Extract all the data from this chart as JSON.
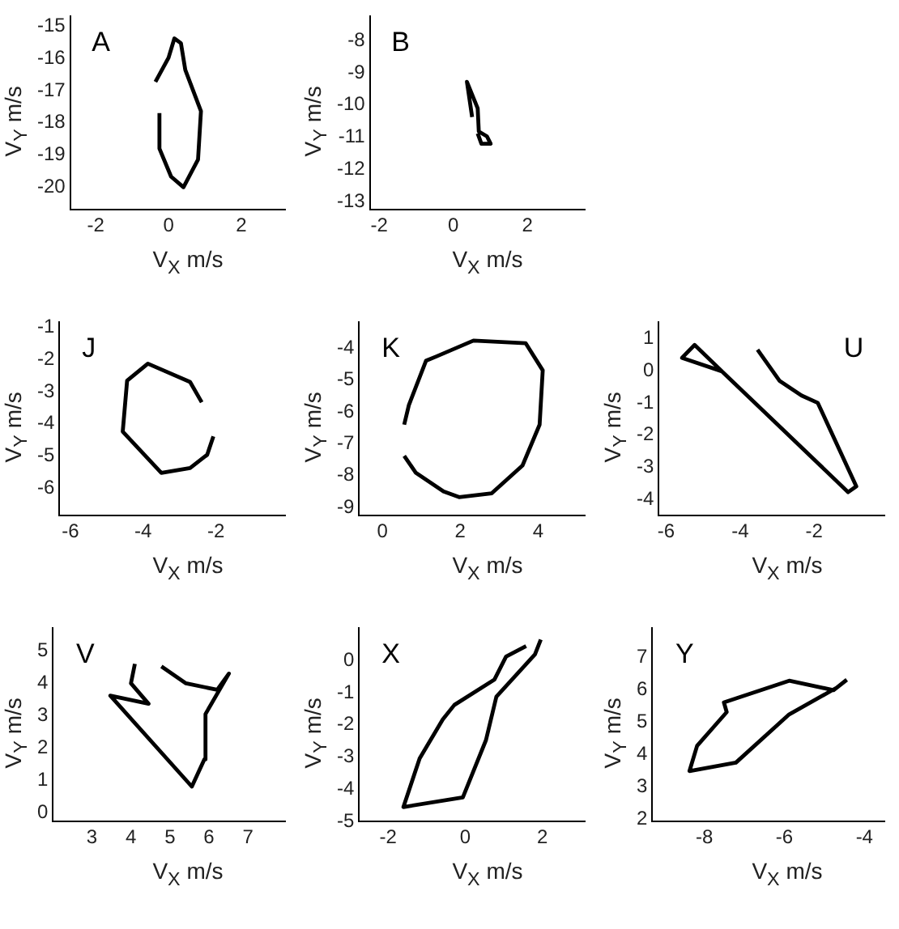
{
  "chart_data": [
    {
      "type": "line",
      "annotations": [
        "A"
      ],
      "xlabel": "V$_{X}$ m/s",
      "ylabel": "V$_{Y}$ m/s",
      "xlim": [
        -2.7,
        3.2
      ],
      "ylim": [
        -20.7,
        -14.7
      ],
      "xticks": [
        -2,
        0,
        2
      ],
      "yticks": [
        -20,
        -19,
        -18,
        -17,
        -16,
        -15
      ],
      "series": [
        {
          "color": "#000000",
          "x": [
            -0.36,
            0.0,
            0.16,
            0.34,
            0.46,
            0.89,
            0.81,
            0.41,
            0.07,
            -0.25,
            -0.25
          ],
          "values": [
            -16.73,
            -15.98,
            -15.38,
            -15.53,
            -16.36,
            -17.64,
            -19.14,
            -20.0,
            -19.67,
            -18.8,
            -17.7
          ]
        }
      ]
    },
    {
      "type": "line",
      "annotations": [
        "B"
      ],
      "xlabel": "V$_{X}$ m/s",
      "ylabel": "V$_{Y}$ m/s",
      "xlim": [
        -2.25,
        3.55
      ],
      "ylim": [
        -13.25,
        -7.25
      ],
      "xticks": [
        -2,
        0,
        2
      ],
      "yticks": [
        -13,
        -12,
        -11,
        -10,
        -9,
        -8
      ],
      "series": [
        {
          "color": "#000000",
          "x": [
            0.51,
            0.37,
            0.66,
            0.69,
            0.91,
            1.01,
            0.76,
            0.66
          ],
          "values": [
            -10.37,
            -9.28,
            -10.1,
            -10.82,
            -10.97,
            -11.2,
            -11.2,
            -10.88
          ]
        }
      ]
    },
    {
      "type": "line",
      "annotations": [
        "J"
      ],
      "xlabel": "V$_{X}$ m/s",
      "ylabel": "V$_{Y}$ m/s",
      "xlim": [
        -6.3,
        -0.1
      ],
      "ylim": [
        -6.85,
        -0.85
      ],
      "xticks": [
        -6,
        -4,
        -2
      ],
      "yticks": [
        -6,
        -5,
        -4,
        -3,
        -2,
        -1
      ],
      "series": [
        {
          "color": "#000000",
          "x": [
            -2.39,
            -2.71,
            -3.87,
            -4.44,
            -4.56,
            -3.5,
            -2.71,
            -2.24,
            -2.07
          ],
          "values": [
            -3.33,
            -2.7,
            -2.13,
            -2.66,
            -4.24,
            -5.52,
            -5.37,
            -4.96,
            -4.39
          ]
        }
      ]
    },
    {
      "type": "line",
      "annotations": [
        "K"
      ],
      "xlabel": "V$_{X}$ m/s",
      "ylabel": "V$_{Y}$ m/s",
      "xlim": [
        -0.6,
        5.2
      ],
      "ylim": [
        -9.25,
        -3.2
      ],
      "xticks": [
        0,
        2,
        4
      ],
      "yticks": [
        -9,
        -8,
        -7,
        -6,
        -5,
        -4
      ],
      "series": [
        {
          "color": "#000000",
          "x": [
            0.56,
            0.86,
            1.57,
            1.97,
            2.81,
            3.6,
            4.04,
            4.12,
            3.68,
            2.34,
            1.38,
            1.12,
            0.68,
            0.56
          ],
          "values": [
            -7.38,
            -7.91,
            -8.49,
            -8.67,
            -8.55,
            -7.68,
            -6.4,
            -4.7,
            -3.85,
            -3.77,
            -4.27,
            -4.4,
            -5.79,
            -6.4
          ]
        }
      ]
    },
    {
      "type": "line",
      "annotations": [
        "U"
      ],
      "xlabel": "V$_{X}$ m/s",
      "ylabel": "V$_{Y}$ m/s",
      "xlim": [
        -6.2,
        -0.1
      ],
      "ylim": [
        -4.5,
        1.5
      ],
      "xticks": [
        -6,
        -4,
        -2
      ],
      "yticks": [
        -4,
        -3,
        -2,
        -1,
        0,
        1
      ],
      "series": [
        {
          "color": "#000000",
          "x": [
            -3.53,
            -2.93,
            -2.34,
            -1.9,
            -0.86,
            -1.08,
            -4.49,
            -5.57,
            -5.23,
            -4.49
          ],
          "values": [
            0.65,
            -0.32,
            -0.77,
            -1.0,
            -3.59,
            -3.77,
            -0.02,
            0.4,
            0.8,
            -0.02
          ]
        }
      ]
    },
    {
      "type": "line",
      "annotations": [
        "V"
      ],
      "xlabel": "V$_{X}$ m/s",
      "ylabel": "V$_{Y}$ m/s",
      "xlim": [
        2.0,
        7.95
      ],
      "ylim": [
        -0.27,
        5.7
      ],
      "xticks": [
        3,
        4,
        5,
        6,
        7
      ],
      "yticks": [
        0,
        1,
        2,
        3,
        4,
        5
      ],
      "series": [
        {
          "color": "#000000",
          "x": [
            4.1,
            4.0,
            4.45,
            3.47,
            5.56,
            5.88,
            5.91,
            6.51,
            6.21,
            5.41,
            4.78
          ],
          "values": [
            4.6,
            4.0,
            3.37,
            3.62,
            0.81,
            1.65,
            3.05,
            4.3,
            3.8,
            4.0,
            4.52
          ]
        }
      ]
    },
    {
      "type": "line",
      "annotations": [
        "X"
      ],
      "xlabel": "V$_{X}$ m/s",
      "ylabel": "V$_{Y}$ m/s",
      "xlim": [
        -2.75,
        3.1
      ],
      "ylim": [
        -5,
        1
      ],
      "xticks": [
        -2,
        0,
        2
      ],
      "yticks": [
        -5,
        -4,
        -3,
        -2,
        -1,
        0
      ],
      "series": [
        {
          "color": "#000000",
          "x": [
            1.58,
            1.06,
            0.76,
            -0.28,
            -0.58,
            -1.18,
            -1.6,
            -0.06,
            0.54,
            0.81,
            1.81,
            1.96
          ],
          "values": [
            0.45,
            0.12,
            -0.59,
            -1.38,
            -1.83,
            -3.04,
            -4.55,
            -4.25,
            -2.47,
            -1.12,
            0.19,
            0.65
          ]
        }
      ]
    },
    {
      "type": "line",
      "annotations": [
        "Y"
      ],
      "xlabel": "V$_{X}$ m/s",
      "ylabel": "V$_{Y}$ m/s",
      "xlim": [
        -9.3,
        -3.5
      ],
      "ylim": [
        1.93,
        7.9
      ],
      "xticks": [
        -8,
        -6,
        -4
      ],
      "yticks": [
        2,
        3,
        4,
        5,
        6,
        7
      ],
      "series": [
        {
          "color": "#000000",
          "x": [
            -4.44,
            -4.77,
            -5.88,
            -7.51,
            -7.44,
            -8.18,
            -8.37,
            -7.21,
            -5.88,
            -4.7
          ],
          "values": [
            6.31,
            5.99,
            6.28,
            5.61,
            5.31,
            4.27,
            3.49,
            3.75,
            5.24,
            6.06
          ]
        }
      ]
    }
  ]
}
